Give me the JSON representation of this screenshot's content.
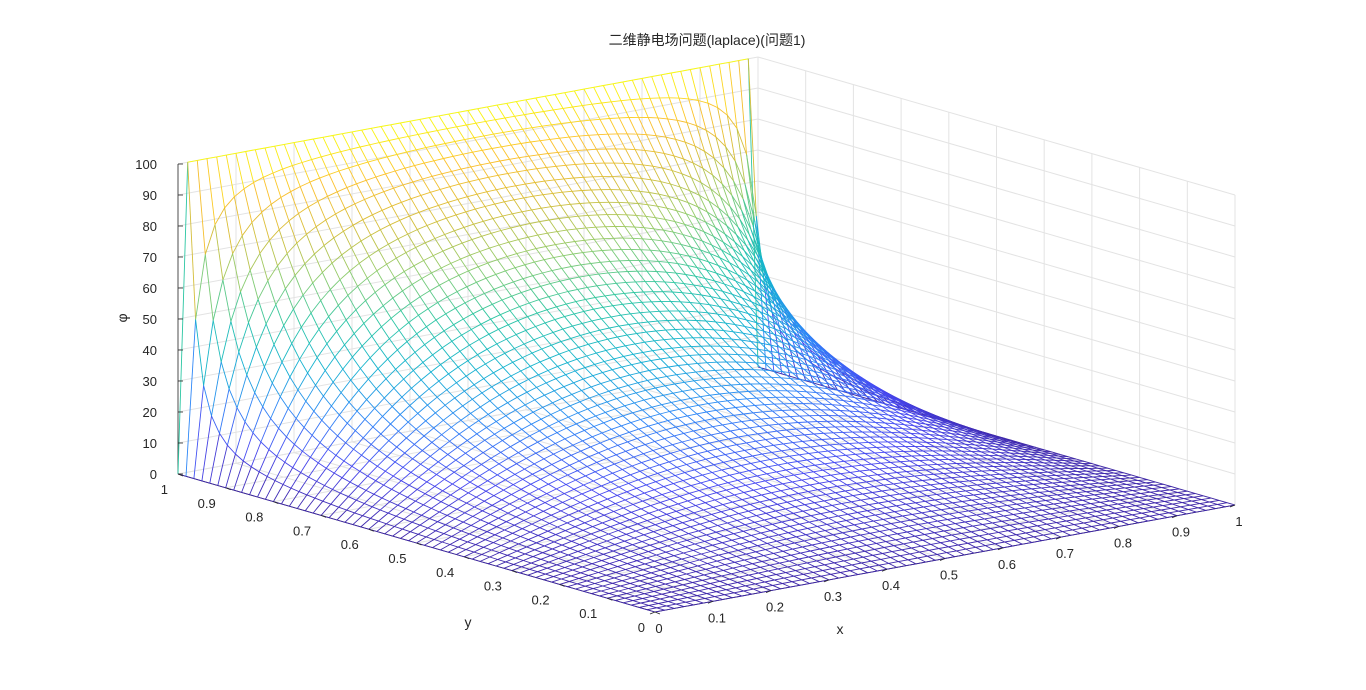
{
  "chart_data": {
    "type": "surface-mesh",
    "title": "二维静电场问题(laplace)(问题1)",
    "xlabel": "x",
    "ylabel": "y",
    "zlabel": "φ",
    "xlim": [
      0,
      1
    ],
    "ylim": [
      0,
      1
    ],
    "zlim": [
      0,
      100
    ],
    "xticks": [
      0,
      0.1,
      0.2,
      0.3,
      0.4,
      0.5,
      0.6,
      0.7,
      0.8,
      0.9,
      1
    ],
    "yticks": [
      0,
      0.1,
      0.2,
      0.3,
      0.4,
      0.5,
      0.6,
      0.7,
      0.8,
      0.9,
      1
    ],
    "zticks": [
      0,
      10,
      20,
      30,
      40,
      50,
      60,
      70,
      80,
      90,
      100
    ],
    "xtick_labels": [
      "0",
      "0.1",
      "0.2",
      "0.3",
      "0.4",
      "0.5",
      "0.6",
      "0.7",
      "0.8",
      "0.9",
      "1"
    ],
    "ytick_labels": [
      "0",
      "0.1",
      "0.2",
      "0.3",
      "0.4",
      "0.5",
      "0.6",
      "0.7",
      "0.8",
      "0.9",
      "1"
    ],
    "ztick_labels": [
      "0",
      "10",
      "20",
      "30",
      "40",
      "50",
      "60",
      "70",
      "80",
      "90",
      "100"
    ],
    "boundary_conditions": {
      "x0": 0,
      "y0": 0,
      "x1": 0,
      "y1": 100
    },
    "grid_points": 61,
    "grid": true,
    "colormap": "parula",
    "colors": [
      "#3e26a8",
      "#4748f2",
      "#2e87f7",
      "#14b2d1",
      "#2cc6a3",
      "#8ecc6e",
      "#d4be3a",
      "#fcbf2c",
      "#f9fb0e"
    ]
  }
}
